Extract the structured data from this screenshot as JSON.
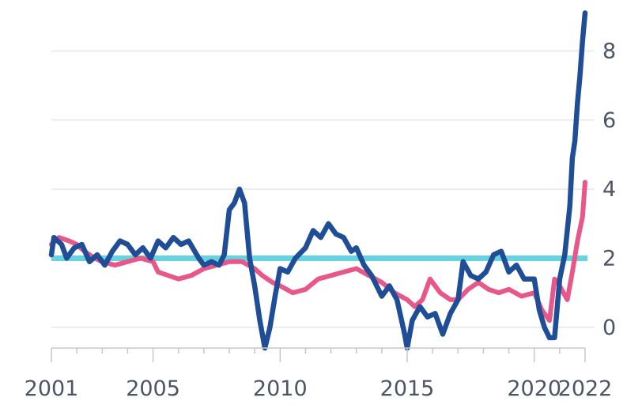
{
  "chart_data": {
    "type": "line",
    "title": "",
    "xlabel": "",
    "ylabel": "",
    "xlim": [
      2001,
      2022
    ],
    "ylim": [
      -0.6,
      9.2
    ],
    "x_ticks": [
      2001,
      2005,
      2010,
      2015,
      2020,
      2022
    ],
    "x_tick_labels": [
      "2001",
      "2005",
      "2010",
      "2015",
      "2020",
      "2022"
    ],
    "y_ticks": [
      0,
      2,
      4,
      6,
      8
    ],
    "y_tick_labels": [
      "0",
      "2",
      "4",
      "6",
      "8"
    ],
    "y_axis_side": "right",
    "grid": true,
    "reference_line": {
      "value": 2,
      "color": "#67d3e0"
    },
    "series": [
      {
        "color": "#e8578a",
        "points": [
          [
            2001.0,
            2.4
          ],
          [
            2001.3,
            2.6
          ],
          [
            2001.7,
            2.5
          ],
          [
            2002.0,
            2.4
          ],
          [
            2002.3,
            2.2
          ],
          [
            2002.7,
            2.0
          ],
          [
            2003.0,
            1.9
          ],
          [
            2003.5,
            1.8
          ],
          [
            2004.0,
            1.9
          ],
          [
            2004.5,
            2.0
          ],
          [
            2005.0,
            1.9
          ],
          [
            2005.2,
            1.6
          ],
          [
            2005.6,
            1.5
          ],
          [
            2006.0,
            1.4
          ],
          [
            2006.5,
            1.5
          ],
          [
            2007.0,
            1.7
          ],
          [
            2007.5,
            1.8
          ],
          [
            2008.0,
            1.9
          ],
          [
            2008.5,
            1.9
          ],
          [
            2009.0,
            1.7
          ],
          [
            2009.3,
            1.5
          ],
          [
            2009.7,
            1.3
          ],
          [
            2010.0,
            1.2
          ],
          [
            2010.5,
            1.0
          ],
          [
            2011.0,
            1.1
          ],
          [
            2011.5,
            1.4
          ],
          [
            2012.0,
            1.5
          ],
          [
            2012.5,
            1.6
          ],
          [
            2013.0,
            1.7
          ],
          [
            2013.5,
            1.5
          ],
          [
            2014.0,
            1.3
          ],
          [
            2014.5,
            1.0
          ],
          [
            2015.0,
            0.8
          ],
          [
            2015.3,
            0.6
          ],
          [
            2015.6,
            0.8
          ],
          [
            2015.9,
            1.4
          ],
          [
            2016.3,
            1.0
          ],
          [
            2016.7,
            0.8
          ],
          [
            2017.0,
            0.8
          ],
          [
            2017.4,
            1.1
          ],
          [
            2017.8,
            1.3
          ],
          [
            2018.2,
            1.1
          ],
          [
            2018.6,
            1.0
          ],
          [
            2019.0,
            1.1
          ],
          [
            2019.5,
            0.9
          ],
          [
            2020.0,
            1.0
          ],
          [
            2020.3,
            0.5
          ],
          [
            2020.6,
            0.2
          ],
          [
            2020.8,
            1.4
          ],
          [
            2021.0,
            1.2
          ],
          [
            2021.3,
            0.8
          ],
          [
            2021.5,
            1.6
          ],
          [
            2021.7,
            2.5
          ],
          [
            2021.9,
            3.2
          ],
          [
            2022.0,
            4.2
          ]
        ]
      },
      {
        "color": "#1f4e96",
        "points": [
          [
            2001.0,
            2.1
          ],
          [
            2001.1,
            2.6
          ],
          [
            2001.4,
            2.4
          ],
          [
            2001.6,
            2.0
          ],
          [
            2001.9,
            2.3
          ],
          [
            2002.2,
            2.4
          ],
          [
            2002.5,
            1.9
          ],
          [
            2002.8,
            2.1
          ],
          [
            2003.1,
            1.8
          ],
          [
            2003.4,
            2.2
          ],
          [
            2003.7,
            2.5
          ],
          [
            2004.0,
            2.4
          ],
          [
            2004.3,
            2.1
          ],
          [
            2004.6,
            2.3
          ],
          [
            2004.9,
            2.0
          ],
          [
            2005.2,
            2.5
          ],
          [
            2005.5,
            2.3
          ],
          [
            2005.8,
            2.6
          ],
          [
            2006.1,
            2.4
          ],
          [
            2006.4,
            2.5
          ],
          [
            2006.8,
            2.0
          ],
          [
            2007.0,
            1.8
          ],
          [
            2007.3,
            1.9
          ],
          [
            2007.6,
            1.8
          ],
          [
            2007.8,
            2.1
          ],
          [
            2008.0,
            3.4
          ],
          [
            2008.2,
            3.6
          ],
          [
            2008.4,
            4.0
          ],
          [
            2008.6,
            3.6
          ],
          [
            2008.8,
            2.0
          ],
          [
            2009.0,
            1.2
          ],
          [
            2009.2,
            0.2
          ],
          [
            2009.4,
            -0.6
          ],
          [
            2009.6,
            0.0
          ],
          [
            2009.8,
            0.9
          ],
          [
            2010.0,
            1.7
          ],
          [
            2010.3,
            1.6
          ],
          [
            2010.6,
            2.0
          ],
          [
            2011.0,
            2.3
          ],
          [
            2011.3,
            2.8
          ],
          [
            2011.6,
            2.6
          ],
          [
            2011.9,
            3.0
          ],
          [
            2012.2,
            2.7
          ],
          [
            2012.5,
            2.6
          ],
          [
            2012.8,
            2.2
          ],
          [
            2013.0,
            2.3
          ],
          [
            2013.3,
            1.8
          ],
          [
            2013.6,
            1.5
          ],
          [
            2014.0,
            0.9
          ],
          [
            2014.3,
            1.2
          ],
          [
            2014.6,
            0.8
          ],
          [
            2014.9,
            -0.2
          ],
          [
            2015.0,
            -0.6
          ],
          [
            2015.2,
            0.2
          ],
          [
            2015.5,
            0.6
          ],
          [
            2015.8,
            0.3
          ],
          [
            2016.1,
            0.4
          ],
          [
            2016.4,
            -0.2
          ],
          [
            2016.7,
            0.4
          ],
          [
            2017.0,
            0.8
          ],
          [
            2017.2,
            1.9
          ],
          [
            2017.5,
            1.5
          ],
          [
            2017.8,
            1.4
          ],
          [
            2018.1,
            1.6
          ],
          [
            2018.4,
            2.1
          ],
          [
            2018.7,
            2.2
          ],
          [
            2019.0,
            1.6
          ],
          [
            2019.3,
            1.8
          ],
          [
            2019.6,
            1.4
          ],
          [
            2020.0,
            1.4
          ],
          [
            2020.2,
            0.5
          ],
          [
            2020.4,
            0.0
          ],
          [
            2020.6,
            -0.3
          ],
          [
            2020.8,
            -0.3
          ],
          [
            2021.0,
            1.4
          ],
          [
            2021.2,
            2.1
          ],
          [
            2021.4,
            3.5
          ],
          [
            2021.5,
            4.9
          ],
          [
            2021.6,
            5.4
          ],
          [
            2021.7,
            6.5
          ],
          [
            2021.8,
            7.3
          ],
          [
            2021.9,
            8.3
          ],
          [
            2022.0,
            9.1
          ]
        ]
      }
    ]
  }
}
